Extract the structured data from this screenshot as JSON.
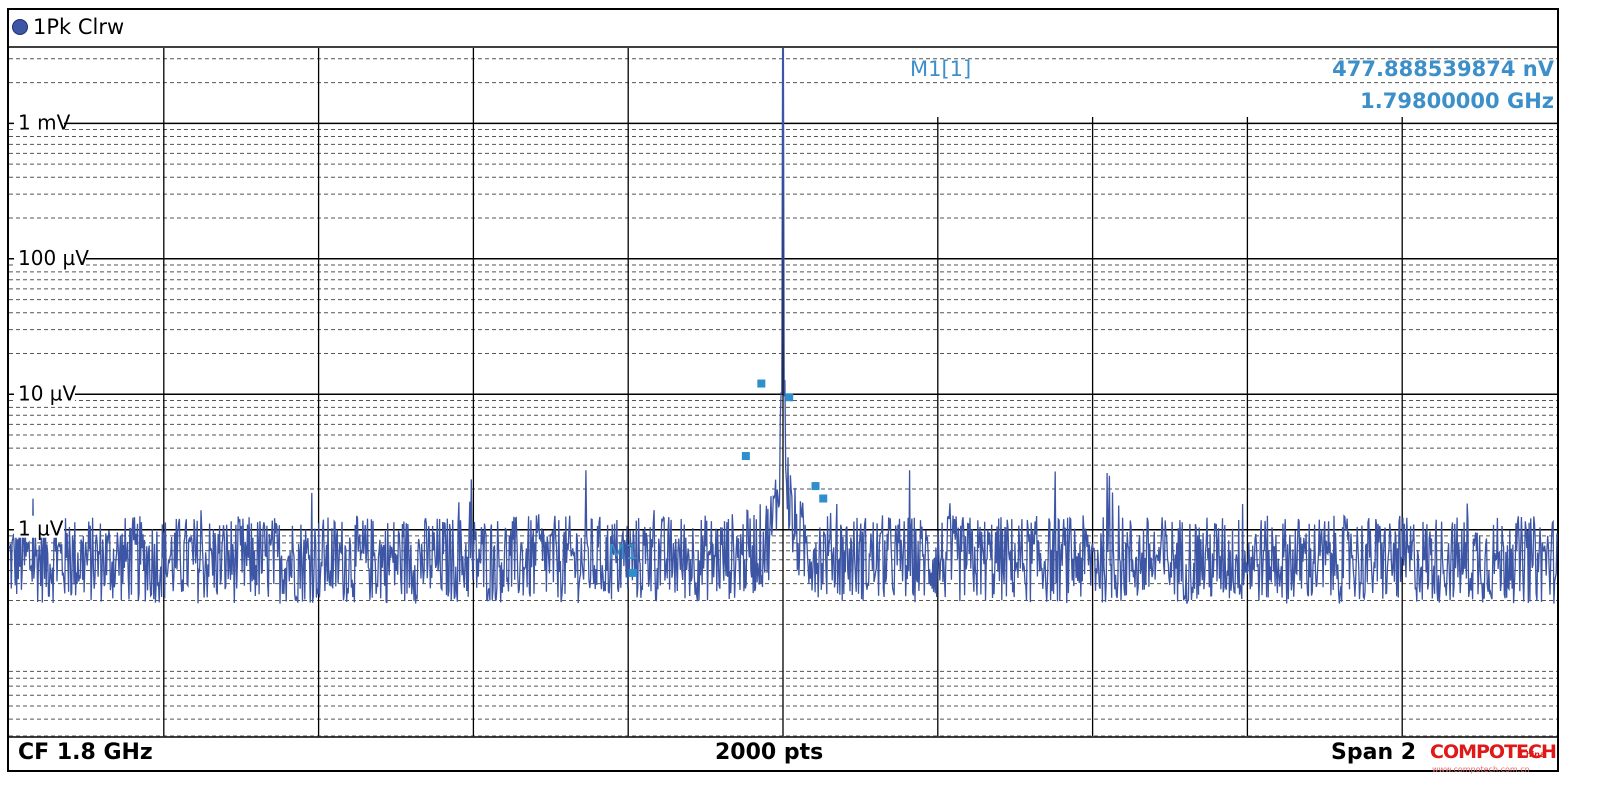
{
  "header": {
    "trace_label": "1Pk Clrw"
  },
  "marker_readout": {
    "name": "M1[1]",
    "level": "477.888539874 nV",
    "frequency": "1.79800000 GHz"
  },
  "footer": {
    "center_frequency": "CF 1.8 GHz",
    "points": "2000 pts",
    "span": "Span 2"
  },
  "watermark": {
    "brand": "COMPOTECH",
    "region": "China",
    "url": "www.compotech.com.cn"
  },
  "colors": {
    "trace": "#3c55a4",
    "marker": "#2e8fcc",
    "grid": "#000000",
    "accent": "#3c8fc8"
  },
  "chart_data": {
    "type": "line",
    "title": "",
    "xlabel": "",
    "ylabel": "",
    "y_scale": "log",
    "y_units": "V",
    "center_frequency_ghz": 1.8,
    "num_points": 2000,
    "x_divisions": 10,
    "y_tick_labels": [
      {
        "label": "1 mV",
        "value": 0.001
      },
      {
        "label": "100 µV",
        "value": 0.0001
      },
      {
        "label": "10 µV",
        "value": 1e-05
      },
      {
        "label": "1 µV",
        "value": 1e-06
      }
    ],
    "ylim": [
      3e-08,
      0.0036
    ],
    "xlim_div": [
      0,
      10
    ],
    "grid": true,
    "noise_floor_v": 6e-07,
    "peak": {
      "x_div": 5.0,
      "value_v": 0.0035
    },
    "marker": {
      "name": "M1",
      "x_div": 4.0,
      "value_v": 4.78e-07
    },
    "peak_markers_v": [
      {
        "x_div": 4.86,
        "value": 1.2e-05
      },
      {
        "x_div": 5.04,
        "value": 9.5e-06
      },
      {
        "x_div": 4.76,
        "value": 3.5e-06
      },
      {
        "x_div": 5.21,
        "value": 2.1e-06
      },
      {
        "x_div": 5.26,
        "value": 1.7e-06
      },
      {
        "x_div": 4.03,
        "value": 4.8e-07
      }
    ],
    "legend": "none"
  }
}
